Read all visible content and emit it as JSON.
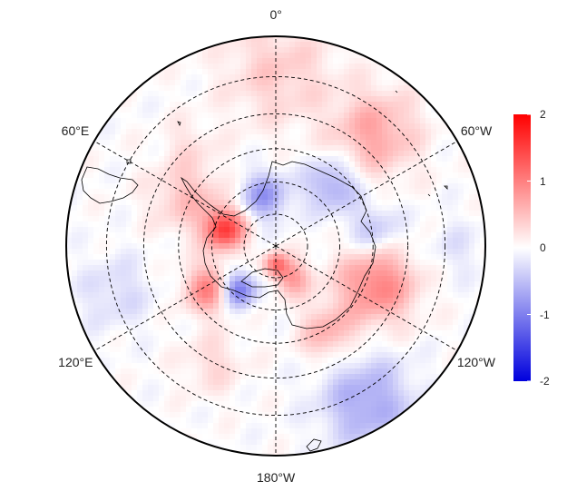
{
  "map": {
    "projection": "south-polar-stereographic",
    "grid": "dashed",
    "lon_labels": [
      "0°",
      "60°E",
      "120°E",
      "180°W",
      "120°W",
      "60°W"
    ],
    "lon_label_angles_deg": [
      0,
      60,
      120,
      180,
      -120,
      -60
    ],
    "lat_circles_deg": [
      -80,
      -70,
      -60,
      -50,
      -40
    ],
    "outer_lat_deg": -30
  },
  "colorbar": {
    "min": -2,
    "max": 2,
    "ticks": [
      "2",
      "1",
      "0",
      "-1",
      "-2"
    ],
    "tick_values": [
      2,
      1,
      0,
      -1,
      -2
    ],
    "colors": {
      "low": "#0000dd",
      "mid": "#ffffff",
      "high": "#ff0000"
    }
  },
  "field_blobs": [
    {
      "lon": 0,
      "lat": -38,
      "value": 0.4,
      "spread": 0.18
    },
    {
      "lon": -40,
      "lat": -45,
      "value": 0.7,
      "spread": 0.14
    },
    {
      "lon": 60,
      "lat": -58,
      "value": 0.5,
      "spread": 0.12
    },
    {
      "lon": 70,
      "lat": -72,
      "value": 1.5,
      "spread": 0.07
    },
    {
      "lon": 15,
      "lat": -73,
      "value": -0.8,
      "spread": 0.08
    },
    {
      "lon": -40,
      "lat": -64,
      "value": -0.7,
      "spread": 0.09
    },
    {
      "lon": -80,
      "lat": -60,
      "value": -0.5,
      "spread": 0.09
    },
    {
      "lon": 120,
      "lat": -65,
      "value": 1.0,
      "spread": 0.08
    },
    {
      "lon": 135,
      "lat": -72,
      "value": -1.2,
      "spread": 0.06
    },
    {
      "lon": -110,
      "lat": -58,
      "value": 1.0,
      "spread": 0.13
    },
    {
      "lon": -150,
      "lat": -60,
      "value": 0.6,
      "spread": 0.09
    },
    {
      "lon": -155,
      "lat": -80,
      "value": 0.8,
      "spread": 0.06
    },
    {
      "lon": 170,
      "lat": -85,
      "value": 1.0,
      "spread": 0.04
    },
    {
      "lon": -150,
      "lat": -38,
      "value": -0.7,
      "spread": 0.15
    },
    {
      "lon": 105,
      "lat": -40,
      "value": -0.3,
      "spread": 0.12
    },
    {
      "lon": -90,
      "lat": -38,
      "value": -0.2,
      "spread": 0.1
    },
    {
      "lon": 150,
      "lat": -50,
      "value": 0.3,
      "spread": 0.1
    },
    {
      "lon": 40,
      "lat": -48,
      "value": 0.2,
      "spread": 0.08
    }
  ]
}
